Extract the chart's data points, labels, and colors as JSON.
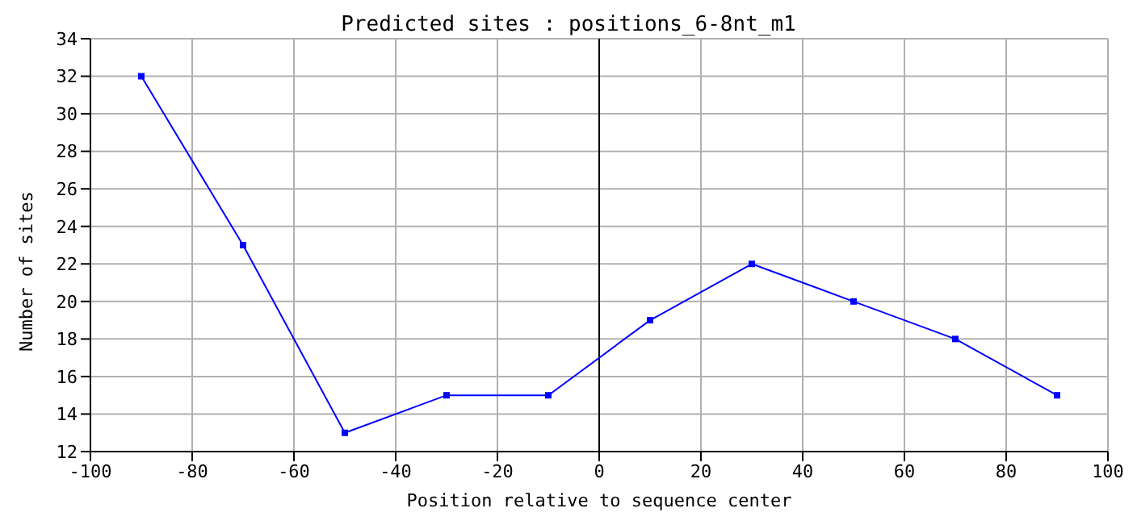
{
  "chart_data": {
    "type": "line",
    "title": "Predicted sites : positions_6-8nt_m1",
    "xlabel": "Position relative to sequence center",
    "ylabel": "Number of sites",
    "x": [
      -90,
      -70,
      -50,
      -30,
      -10,
      10,
      30,
      50,
      70,
      90
    ],
    "series": [
      {
        "color": "#0000ff",
        "values": [
          32,
          23,
          13,
          15,
          15,
          19,
          22,
          20,
          18,
          15
        ]
      }
    ],
    "xlim": [
      -100,
      100
    ],
    "xticks": [
      -100,
      -80,
      -60,
      -40,
      -20,
      0,
      20,
      40,
      60,
      80,
      100
    ],
    "ylim": [
      12,
      34
    ],
    "yticks": [
      12,
      14,
      16,
      18,
      20,
      22,
      24,
      26,
      28,
      30,
      32,
      34
    ],
    "grid": true,
    "marker": "square",
    "ref_lines": [
      {
        "axis": "x",
        "value": 0,
        "color": "#000000"
      }
    ]
  }
}
